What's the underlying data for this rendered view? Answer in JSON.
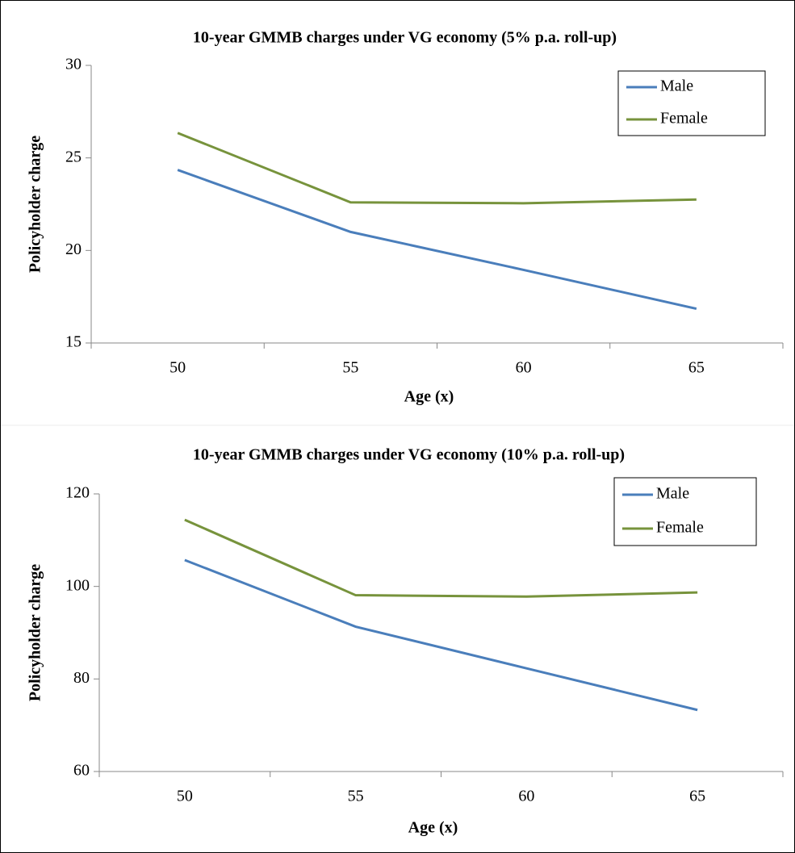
{
  "chart_data": [
    {
      "type": "line",
      "title": "10-year GMMB charges under VG economy (5% p.a. roll-up)",
      "x_label": "Age (x)",
      "y_label": "Policyholder charge",
      "categories": [
        "50",
        "55",
        "60",
        "65"
      ],
      "series": [
        {
          "name": "Male",
          "color": "#4a7ebb",
          "values": [
            24.35,
            21.0,
            18.95,
            16.85
          ]
        },
        {
          "name": "Female",
          "color": "#77933c",
          "values": [
            26.35,
            22.6,
            22.55,
            22.75
          ]
        }
      ],
      "ylim": [
        15,
        30
      ],
      "yticks": [
        15,
        20,
        25,
        30
      ],
      "legend": "upper right"
    },
    {
      "type": "line",
      "title": "10-year GMMB charges under VG economy (10% p.a. roll-up)",
      "x_label": "Age (x)",
      "y_label": "Policyholder charge",
      "categories": [
        "50",
        "55",
        "60",
        "65"
      ],
      "series": [
        {
          "name": "Male",
          "color": "#4a7ebb",
          "values": [
            105.7,
            91.3,
            82.3,
            73.3
          ]
        },
        {
          "name": "Female",
          "color": "#77933c",
          "values": [
            114.4,
            98.1,
            97.8,
            98.7
          ]
        }
      ],
      "ylim": [
        60,
        120
      ],
      "yticks": [
        60,
        80,
        100,
        120
      ],
      "legend": "upper right"
    }
  ]
}
